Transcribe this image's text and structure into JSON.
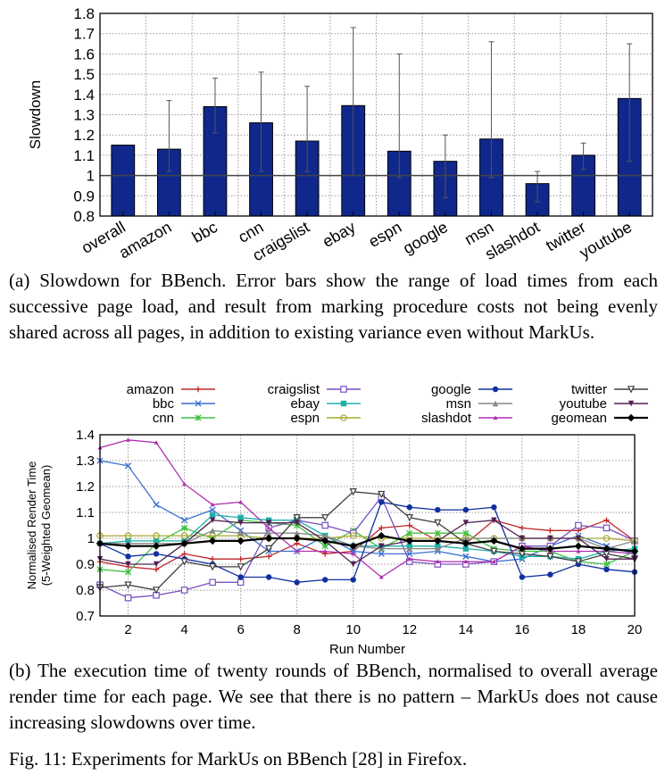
{
  "captions": {
    "a": "(a) Slowdown for BBench. Error bars show the range of load times from each successive page load, and result from marking procedure costs not being evenly shared across all pages, in addition to existing variance even without MarkUs.",
    "b": "(b) The execution time of twenty rounds of BBench, normalised to overall average render time for each page. We see that there is no pattern – MarkUs does not cause increasing slowdowns over time.",
    "fig": "Fig. 11: Experiments for MarkUs on BBench [28] in Firefox."
  },
  "chart_data": [
    {
      "type": "bar",
      "title": "",
      "xlabel": "",
      "ylabel": "Slowdown",
      "ylim": [
        0.8,
        1.8
      ],
      "yticks": [
        "0.8",
        "0.9",
        "1",
        "1.1",
        "1.2",
        "1.3",
        "1.4",
        "1.5",
        "1.6",
        "1.7",
        "1.8"
      ],
      "grid": true,
      "reference_line": 1.0,
      "categories": [
        "overall",
        "amazon",
        "bbc",
        "cnn",
        "craigslist",
        "ebay",
        "espn",
        "google",
        "msn",
        "slashdot",
        "twitter",
        "youtube"
      ],
      "values": [
        1.15,
        1.13,
        1.34,
        1.26,
        1.17,
        1.345,
        1.12,
        1.07,
        1.18,
        0.96,
        1.1,
        1.38
      ],
      "error_low": [
        null,
        1.02,
        1.21,
        1.02,
        1.02,
        1.0,
        0.99,
        0.89,
        0.99,
        0.87,
        1.03,
        1.07
      ],
      "error_high": [
        null,
        1.37,
        1.48,
        1.51,
        1.44,
        1.73,
        1.6,
        1.2,
        1.66,
        1.02,
        1.16,
        1.65
      ],
      "bar_color": "#10288c"
    },
    {
      "type": "line",
      "title": "",
      "xlabel": "Run Number",
      "ylabel": "Normalised Render Time",
      "ylabel2": "(5-Weighted Geomean)",
      "xlim": [
        1,
        20
      ],
      "ylim": [
        0.7,
        1.4
      ],
      "xticks": [
        "2",
        "4",
        "6",
        "8",
        "10",
        "12",
        "14",
        "16",
        "18",
        "20"
      ],
      "yticks": [
        "0.7",
        "0.8",
        "0.9",
        "1",
        "1.1",
        "1.2",
        "1.3",
        "1.4"
      ],
      "grid": true,
      "legend_placement": "top",
      "x": [
        1,
        2,
        3,
        4,
        5,
        6,
        7,
        8,
        9,
        10,
        11,
        12,
        13,
        14,
        15,
        16,
        17,
        18,
        19,
        20
      ],
      "series": [
        {
          "name": "amazon",
          "color": "#c0282a",
          "marker": "plus",
          "values": [
            0.91,
            0.89,
            0.88,
            0.94,
            0.92,
            0.92,
            0.93,
            0.98,
            0.94,
            0.95,
            1.04,
            1.05,
            0.99,
            0.98,
            1.07,
            1.04,
            1.03,
            1.03,
            1.07,
            0.99
          ]
        },
        {
          "name": "bbc",
          "color": "#3a6fd0",
          "marker": "x",
          "values": [
            1.3,
            1.28,
            1.13,
            1.07,
            1.11,
            1.03,
            0.95,
            0.95,
            1.01,
            0.95,
            0.94,
            0.94,
            0.95,
            0.93,
            0.91,
            0.92,
            0.97,
            1.01,
            0.97,
            0.94
          ]
        },
        {
          "name": "cnn",
          "color": "#40c040",
          "marker": "star",
          "values": [
            0.88,
            0.87,
            0.98,
            1.04,
            1.0,
            1.07,
            1.06,
            1.05,
            0.97,
            1.03,
            0.96,
            1.02,
            1.02,
            1.02,
            0.96,
            0.95,
            0.95,
            0.91,
            0.9,
            0.95
          ]
        },
        {
          "name": "craigslist",
          "color": "#7a4fc0",
          "marker": "square-open",
          "values": [
            0.82,
            0.77,
            0.78,
            0.8,
            0.83,
            0.83,
            1.04,
            1.07,
            1.05,
            1.02,
            1.16,
            0.91,
            0.9,
            0.9,
            0.91,
            0.97,
            0.97,
            1.05,
            1.04,
            0.99
          ]
        },
        {
          "name": "ebay",
          "color": "#20b0a8",
          "marker": "square",
          "values": [
            0.98,
            0.99,
            0.99,
            0.99,
            1.09,
            1.08,
            1.07,
            1.07,
            1.01,
            0.97,
            0.97,
            0.97,
            0.97,
            0.96,
            0.95,
            0.93,
            0.93,
            0.92,
            0.95,
            0.96
          ]
        },
        {
          "name": "espn",
          "color": "#a8a830",
          "marker": "circle-open",
          "values": [
            1.01,
            1.01,
            1.01,
            1.01,
            1.01,
            1.01,
            1.0,
            1.0,
            1.0,
            1.01,
            1.0,
            1.0,
            1.0,
            1.0,
            1.0,
            1.0,
            1.0,
            1.0,
            1.0,
            0.99
          ]
        },
        {
          "name": "google",
          "color": "#1030a0",
          "marker": "circle",
          "values": [
            0.98,
            0.93,
            0.94,
            0.92,
            0.9,
            0.85,
            0.85,
            0.83,
            0.84,
            0.84,
            1.14,
            1.12,
            1.11,
            1.11,
            1.12,
            0.85,
            0.86,
            0.9,
            0.88,
            0.87
          ]
        },
        {
          "name": "msn",
          "color": "#888888",
          "marker": "triangle-up",
          "values": [
            0.98,
            0.98,
            0.98,
            0.98,
            1.03,
            1.02,
            1.02,
            1.02,
            1.01,
            0.97,
            0.96,
            0.96,
            0.96,
            1.0,
            1.0,
            1.0,
            1.0,
            1.0,
            0.96,
            0.99
          ]
        },
        {
          "name": "slashdot",
          "color": "#b030b0",
          "marker": "triangle-up-small",
          "values": [
            1.35,
            1.38,
            1.37,
            1.21,
            1.13,
            1.14,
            1.04,
            0.95,
            0.95,
            0.94,
            0.85,
            0.92,
            0.91,
            0.91,
            0.91,
            0.97,
            0.95,
            0.95,
            0.95,
            0.94
          ]
        },
        {
          "name": "twitter",
          "color": "#404040",
          "marker": "triangle-down-open",
          "values": [
            0.81,
            0.82,
            0.8,
            0.91,
            0.89,
            0.89,
            0.96,
            1.08,
            1.08,
            1.18,
            1.17,
            1.08,
            1.06,
            0.98,
            0.95,
            0.94,
            0.93,
            0.91,
            0.94,
            0.92
          ]
        },
        {
          "name": "youtube",
          "color": "#502050",
          "marker": "triangle-down",
          "values": [
            0.92,
            0.9,
            0.9,
            0.98,
            1.07,
            1.06,
            1.06,
            1.06,
            0.99,
            0.9,
            0.97,
            0.99,
            0.99,
            1.06,
            1.07,
            1.0,
            1.0,
            1.0,
            0.92,
            0.92
          ]
        },
        {
          "name": "geomean",
          "color": "#000000",
          "marker": "diamond",
          "values": [
            0.98,
            0.97,
            0.97,
            0.98,
            0.99,
            0.99,
            1.0,
            1.0,
            0.99,
            0.97,
            1.01,
            0.99,
            0.99,
            0.98,
            0.99,
            0.96,
            0.96,
            0.97,
            0.96,
            0.95
          ]
        }
      ]
    }
  ]
}
